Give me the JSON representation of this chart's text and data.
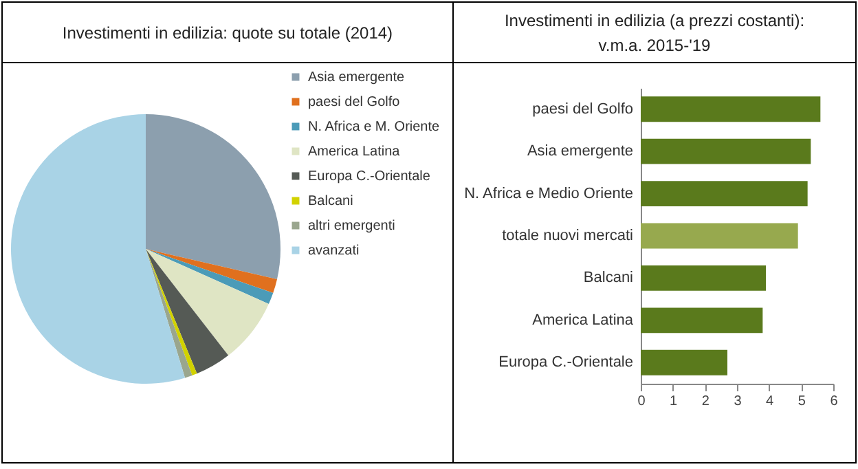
{
  "chart_data": [
    {
      "type": "pie",
      "title": "Investimenti in edilizia: quote su totale (2014)",
      "categories": [
        "Asia emergente",
        "paesi del Golfo",
        "N. Africa e M. Oriente",
        "America Latina",
        "Europa C.-Orientale",
        "Balcani",
        "altri emergenti",
        "avanzati"
      ],
      "values": [
        28.6,
        1.7,
        1.4,
        7.8,
        4.3,
        0.6,
        0.9,
        54.7
      ],
      "colors": [
        "#8c9fae",
        "#e0701e",
        "#4b9bb8",
        "#dfe5c4",
        "#555a55",
        "#d2d200",
        "#9aa68e",
        "#a9d3e6"
      ],
      "legend": "right"
    },
    {
      "type": "bar",
      "orientation": "horizontal",
      "title": "Investimenti in edilizia (a prezzi costanti): v.m.a. 2015-'19",
      "categories": [
        "paesi del Golfo",
        "Asia emergente",
        "N. Africa e Medio Oriente",
        "totale nuovi mercati",
        "Balcani",
        "America Latina",
        "Europa C.-Orientale"
      ],
      "values": [
        5.6,
        5.3,
        5.2,
        4.9,
        3.9,
        3.8,
        2.7
      ],
      "colors": [
        "#5a7a1c",
        "#5a7a1c",
        "#5a7a1c",
        "#97a94e",
        "#5a7a1c",
        "#5a7a1c",
        "#5a7a1c"
      ],
      "xlim": [
        0,
        6
      ],
      "xticks": [
        0,
        1,
        2,
        3,
        4,
        5,
        6
      ]
    }
  ]
}
